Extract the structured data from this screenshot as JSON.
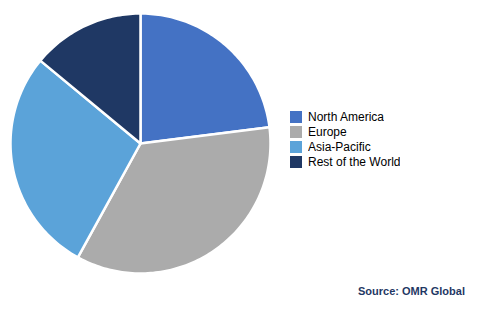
{
  "chart_data": {
    "type": "pie",
    "categories": [
      "North America",
      "Europe",
      "Asia-Pacific",
      "Rest of the World"
    ],
    "values": [
      23,
      35,
      28,
      14
    ],
    "colors": [
      "#4472C4",
      "#ABABAB",
      "#5BA3D9",
      "#1F3864"
    ],
    "legend": "right",
    "annotations": [
      "Source: OMR Global"
    ]
  }
}
